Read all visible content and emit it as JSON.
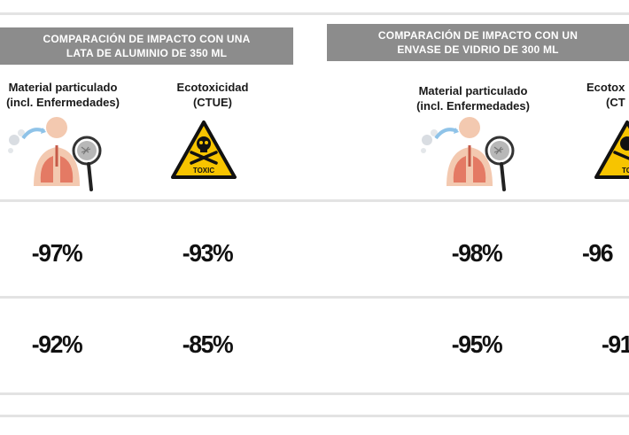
{
  "banners": [
    {
      "line1": "COMPARACIÓN DE IMPACTO CON UNA",
      "line2": "LATA DE ALUMINIO DE 350 ML"
    },
    {
      "line1": "COMPARACIÓN DE IMPACTO CON UN",
      "line2": "ENVASE DE VIDRIO DE 300 ML"
    }
  ],
  "columns": [
    {
      "line1": "Material particulado",
      "line2": "(incl. Enfermedades)",
      "icon": "lungs-magnifier-icon"
    },
    {
      "line1": "Ecotoxicidad",
      "line2": "(CTUE)",
      "icon": "toxic-warning-icon"
    },
    {
      "line1": "Material particulado",
      "line2": "(incl. Enfermedades)",
      "icon": "lungs-magnifier-icon"
    },
    {
      "line1": "Ecotox",
      "line2": "(CT",
      "icon": "toxic-warning-icon"
    }
  ],
  "rows": [
    {
      "values": [
        "-97%",
        "-93%",
        "-98%",
        "-96"
      ]
    },
    {
      "values": [
        "-92%",
        "-85%",
        "-95%",
        "-91"
      ]
    }
  ],
  "colors": {
    "banner": "#8c8c8c",
    "rule": "#e3e3e3",
    "warning": "#f7c400"
  },
  "toxic_label": "TOXIC"
}
